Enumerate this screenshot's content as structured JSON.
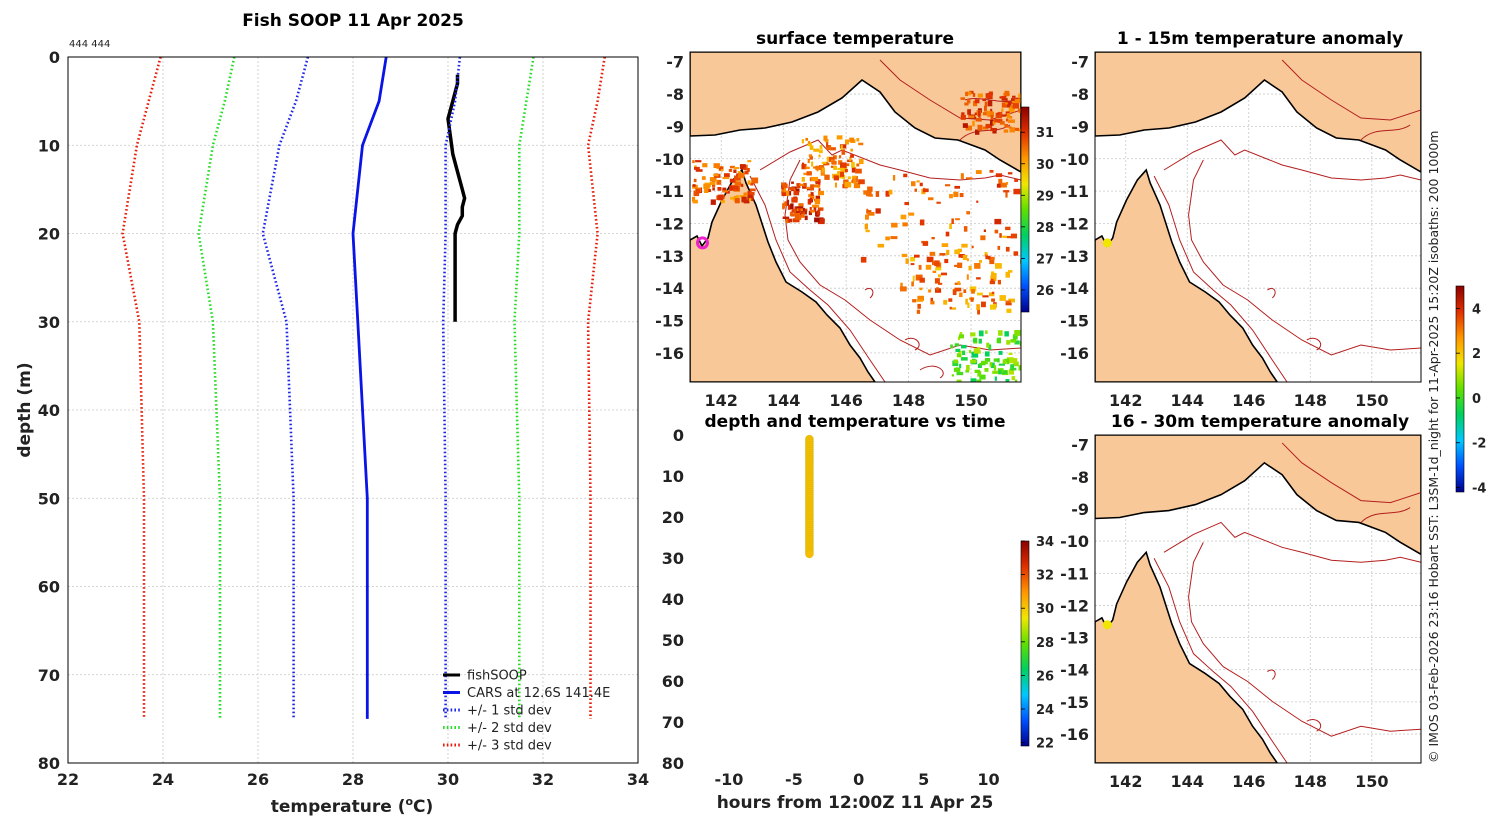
{
  "colors": {
    "fishsoop": "#000000",
    "cars": "#0a14e6",
    "std1": "#1e28e6",
    "std2": "#28dc28",
    "std3": "#e61e0a",
    "land": "#f8c898",
    "isobath": "#b41e1e",
    "point_yellow": "#f0e600",
    "marker_magenta": "#ee22cc"
  },
  "colormap_stops": [
    "#00008b",
    "#0050ff",
    "#00c8ff",
    "#00d060",
    "#60e000",
    "#f0e600",
    "#ff9600",
    "#e03000",
    "#8b0000"
  ],
  "chart_data": [
    {
      "id": "profile",
      "type": "line",
      "title": "Fish SOOP 11 Apr 2025",
      "annotation": "444 444",
      "xlabel": "temperature (",
      "xlabel_sup": "o",
      "xlabel_end": "C)",
      "ylabel": "depth (m)",
      "xlim": [
        22,
        34
      ],
      "ylim": [
        0,
        80
      ],
      "xticks": [
        22,
        24,
        26,
        28,
        30,
        32,
        34
      ],
      "yticks": [
        0,
        10,
        20,
        30,
        40,
        50,
        60,
        70,
        80
      ],
      "legend": [
        "fishSOOP",
        "CARS at 12.6S 141.4E",
        "+/- 1 std dev",
        "+/- 2 std dev",
        "+/- 3 std dev"
      ],
      "legend_position": "bottom-right",
      "series": [
        {
          "name": "fishSOOP",
          "style": "solid",
          "points": [
            [
              30.2,
              2
            ],
            [
              30.2,
              3
            ],
            [
              30.1,
              5
            ],
            [
              30.0,
              7
            ],
            [
              30.05,
              9
            ],
            [
              30.1,
              11
            ],
            [
              30.2,
              13
            ],
            [
              30.3,
              15
            ],
            [
              30.35,
              16
            ],
            [
              30.3,
              17
            ],
            [
              30.3,
              18
            ],
            [
              30.2,
              19
            ],
            [
              30.15,
              20
            ],
            [
              30.15,
              25
            ],
            [
              30.15,
              30
            ]
          ]
        },
        {
          "name": "CARS at 12.6S 141.4E",
          "style": "solid",
          "points": [
            [
              28.7,
              0
            ],
            [
              28.55,
              5
            ],
            [
              28.2,
              10
            ],
            [
              28.0,
              20
            ],
            [
              28.1,
              30
            ],
            [
              28.3,
              50
            ],
            [
              28.3,
              75
            ]
          ]
        },
        {
          "name": "+/- 1 std dev low",
          "style": "dotted",
          "points": [
            [
              27.05,
              0
            ],
            [
              26.8,
              5
            ],
            [
              26.45,
              10
            ],
            [
              26.1,
              20
            ],
            [
              26.6,
              30
            ],
            [
              26.75,
              50
            ],
            [
              26.75,
              75
            ]
          ]
        },
        {
          "name": "+/- 1 std dev high",
          "style": "dotted",
          "points": [
            [
              30.25,
              0
            ],
            [
              30.15,
              5
            ],
            [
              29.95,
              10
            ],
            [
              29.95,
              20
            ],
            [
              29.9,
              30
            ],
            [
              29.95,
              50
            ],
            [
              29.95,
              75
            ]
          ]
        },
        {
          "name": "+/- 2 std dev low",
          "style": "dotted",
          "points": [
            [
              25.5,
              0
            ],
            [
              25.3,
              5
            ],
            [
              25.05,
              10
            ],
            [
              24.75,
              20
            ],
            [
              25.05,
              30
            ],
            [
              25.2,
              50
            ],
            [
              25.2,
              75
            ]
          ]
        },
        {
          "name": "+/- 2 std dev high",
          "style": "dotted",
          "points": [
            [
              31.8,
              0
            ],
            [
              31.65,
              5
            ],
            [
              31.5,
              10
            ],
            [
              31.5,
              20
            ],
            [
              31.4,
              30
            ],
            [
              31.5,
              50
            ],
            [
              31.5,
              75
            ]
          ]
        },
        {
          "name": "+/- 3 std dev low",
          "style": "dotted",
          "points": [
            [
              23.95,
              0
            ],
            [
              23.7,
              5
            ],
            [
              23.45,
              10
            ],
            [
              23.15,
              20
            ],
            [
              23.5,
              30
            ],
            [
              23.6,
              50
            ],
            [
              23.6,
              75
            ]
          ]
        },
        {
          "name": "+/- 3 std dev high",
          "style": "dotted",
          "points": [
            [
              33.3,
              0
            ],
            [
              33.15,
              5
            ],
            [
              32.95,
              10
            ],
            [
              33.15,
              20
            ],
            [
              32.95,
              30
            ],
            [
              33.0,
              50
            ],
            [
              33.0,
              75
            ]
          ]
        }
      ]
    },
    {
      "id": "sst",
      "type": "heatmap",
      "title": "surface temperature",
      "xlim": [
        141,
        151.6
      ],
      "ylim": [
        -16.9,
        -6.7
      ],
      "xticks": [
        142,
        144,
        146,
        148,
        150
      ],
      "yticks": [
        -7,
        -8,
        -9,
        -10,
        -11,
        -12,
        -13,
        -14,
        -15,
        -16
      ],
      "colorbar": {
        "min": 25.3,
        "max": 31.8,
        "ticks": [
          26,
          27,
          28,
          29,
          30,
          31
        ]
      },
      "marker": {
        "lon": 141.4,
        "lat": -12.6
      }
    },
    {
      "id": "anom1",
      "type": "heatmap",
      "title": "1 - 15m temperature anomaly",
      "xlim": [
        141,
        151.6
      ],
      "ylim": [
        -16.9,
        -6.7
      ],
      "xticks": [
        142,
        144,
        146,
        148,
        150
      ],
      "yticks": [
        -7,
        -8,
        -9,
        -10,
        -11,
        -12,
        -13,
        -14,
        -15,
        -16
      ],
      "marker": {
        "lon": 141.4,
        "lat": -12.6
      }
    },
    {
      "id": "anom2",
      "type": "heatmap",
      "title": "16 - 30m temperature anomaly",
      "xlim": [
        141,
        151.6
      ],
      "ylim": [
        -16.9,
        -6.7
      ],
      "xticks": [
        142,
        144,
        146,
        148,
        150
      ],
      "yticks": [
        -7,
        -8,
        -9,
        -10,
        -11,
        -12,
        -13,
        -14,
        -15,
        -16
      ],
      "marker": {
        "lon": 141.4,
        "lat": -12.6
      }
    },
    {
      "id": "anom_colorbar",
      "type": "heatmap",
      "min": -4.2,
      "max": 5,
      "ticks": [
        -4,
        -2,
        0,
        2,
        4
      ]
    },
    {
      "id": "timeseries",
      "type": "scatter",
      "title": "depth and temperature vs time",
      "xlabel": "hours from 12:00Z 11 Apr 25",
      "xlim": [
        -13,
        12.5
      ],
      "ylim": [
        0,
        80
      ],
      "xticks": [
        -10,
        -5,
        0,
        5,
        10
      ],
      "yticks": [
        0,
        10,
        20,
        30,
        40,
        50,
        60,
        70,
        80
      ],
      "points": {
        "hour": -3.8,
        "depth_from": 1,
        "depth_to": 29,
        "depth_step": 0.5,
        "temperature": 30.2
      },
      "colorbar": {
        "min": 21.8,
        "max": 34,
        "ticks": [
          22,
          24,
          26,
          28,
          30,
          32,
          34
        ]
      }
    }
  ],
  "credit": "© IMOS 03-Feb-2026 23:16 Hobart SST: L3SM-1d_night for 11-Apr-2025 15:20Z isobaths: 200  1000m"
}
